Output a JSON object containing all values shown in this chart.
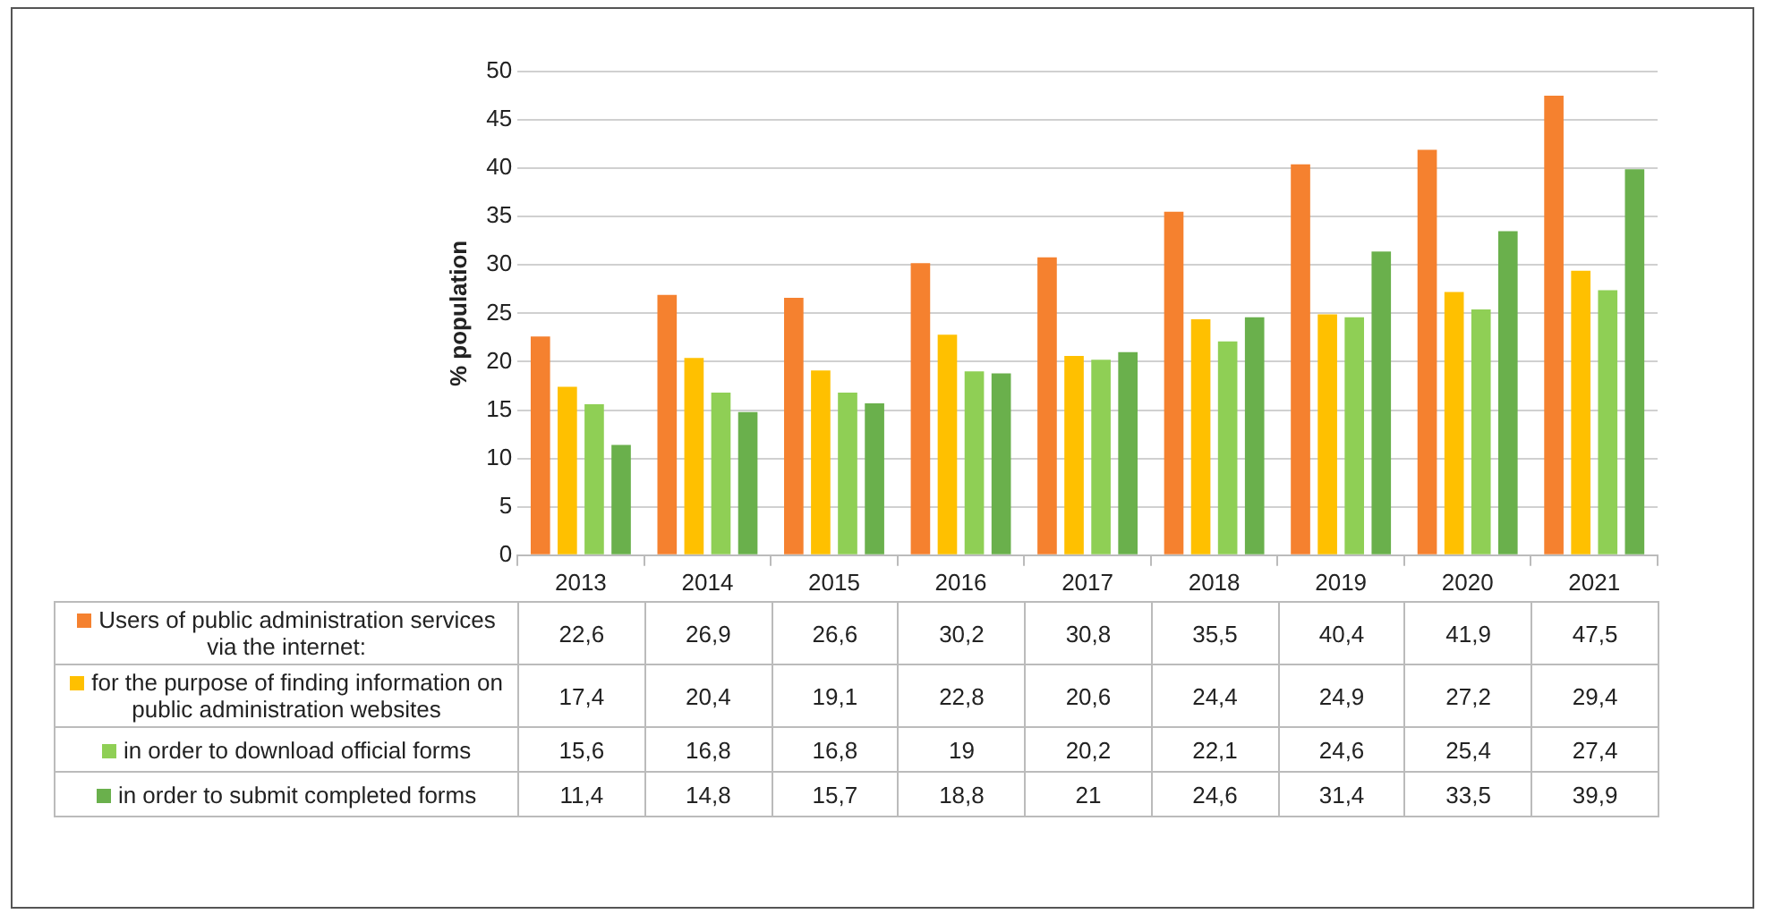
{
  "chart_data": {
    "type": "bar",
    "ylabel": "% population",
    "categories": [
      "2013",
      "2014",
      "2015",
      "2016",
      "2017",
      "2018",
      "2019",
      "2020",
      "2021"
    ],
    "series": [
      {
        "name": "Users of public administration services via the internet:",
        "color": "#f5812f",
        "values": [
          22.6,
          26.9,
          26.6,
          30.2,
          30.8,
          35.5,
          40.4,
          41.9,
          47.5
        ],
        "value_labels": [
          "22,6",
          "26,9",
          "26,6",
          "30,2",
          "30,8",
          "35,5",
          "40,4",
          "41,9",
          "47,5"
        ]
      },
      {
        "name": "for the purpose of finding information on public administration websites",
        "color": "#ffc000",
        "values": [
          17.4,
          20.4,
          19.1,
          22.8,
          20.6,
          24.4,
          24.9,
          27.2,
          29.4
        ],
        "value_labels": [
          "17,4",
          "20,4",
          "19,1",
          "22,8",
          "20,6",
          "24,4",
          "24,9",
          "27,2",
          "29,4"
        ]
      },
      {
        "name": "in order to download official forms",
        "color": "#8fcf55",
        "values": [
          15.6,
          16.8,
          16.8,
          19,
          20.2,
          22.1,
          24.6,
          25.4,
          27.4
        ],
        "value_labels": [
          "15,6",
          "16,8",
          "16,8",
          "19",
          "20,2",
          "22,1",
          "24,6",
          "25,4",
          "27,4"
        ]
      },
      {
        "name": "in order to submit completed forms",
        "color": "#6ab04c",
        "values": [
          11.4,
          14.8,
          15.7,
          18.8,
          21,
          24.6,
          31.4,
          33.5,
          39.9
        ],
        "value_labels": [
          "11,4",
          "14,8",
          "15,7",
          "18,8",
          "21",
          "24,6",
          "31,4",
          "33,5",
          "39,9"
        ]
      }
    ],
    "ylim": [
      0,
      50
    ],
    "yticks": [
      0,
      5,
      10,
      15,
      20,
      25,
      30,
      35,
      40,
      45,
      50
    ],
    "grid": "y",
    "legend": "bottom"
  }
}
